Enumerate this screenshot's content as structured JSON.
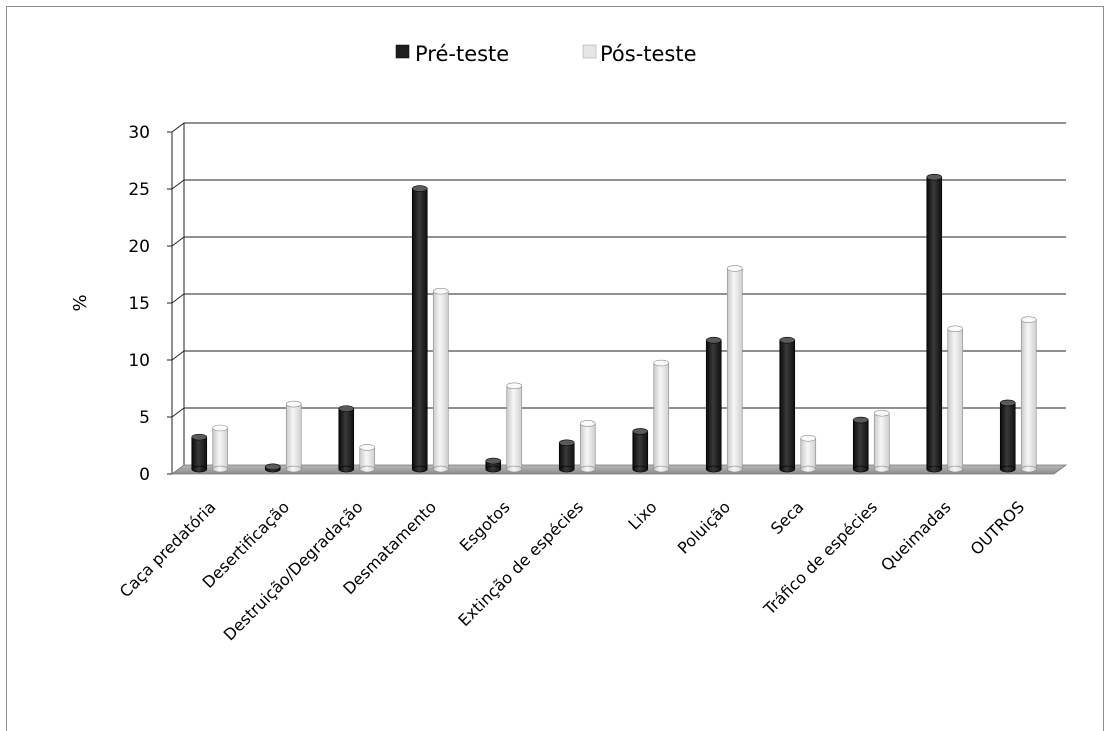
{
  "chart_data": {
    "type": "bar",
    "title": "",
    "xlabel": "",
    "ylabel": "%",
    "ylim": [
      0,
      30
    ],
    "yticks": [
      0,
      5,
      10,
      15,
      20,
      25,
      30
    ],
    "grid": true,
    "legend_position": "top-center",
    "style": "3d-clustered-column",
    "categories": [
      "Caça predatória",
      "Desertificação",
      "Destruição/Degradação",
      "Desmatamento",
      "Esgotos",
      "Extinção de espécies",
      "Lixo",
      "Poluição",
      "Seca",
      "Tráfico de espécies",
      "Queimadas",
      "OUTROS"
    ],
    "series": [
      {
        "name": "Pré-teste",
        "color": "#1e1e1e",
        "values": [
          2.8,
          0.2,
          5.3,
          24.6,
          0.7,
          2.3,
          3.3,
          11.3,
          11.3,
          4.3,
          25.6,
          5.8
        ]
      },
      {
        "name": "Pós-teste",
        "color": "#e6e6e6",
        "values": [
          3.6,
          5.7,
          1.9,
          15.6,
          7.3,
          4.0,
          9.3,
          17.6,
          2.7,
          4.9,
          12.3,
          13.1
        ]
      }
    ]
  }
}
